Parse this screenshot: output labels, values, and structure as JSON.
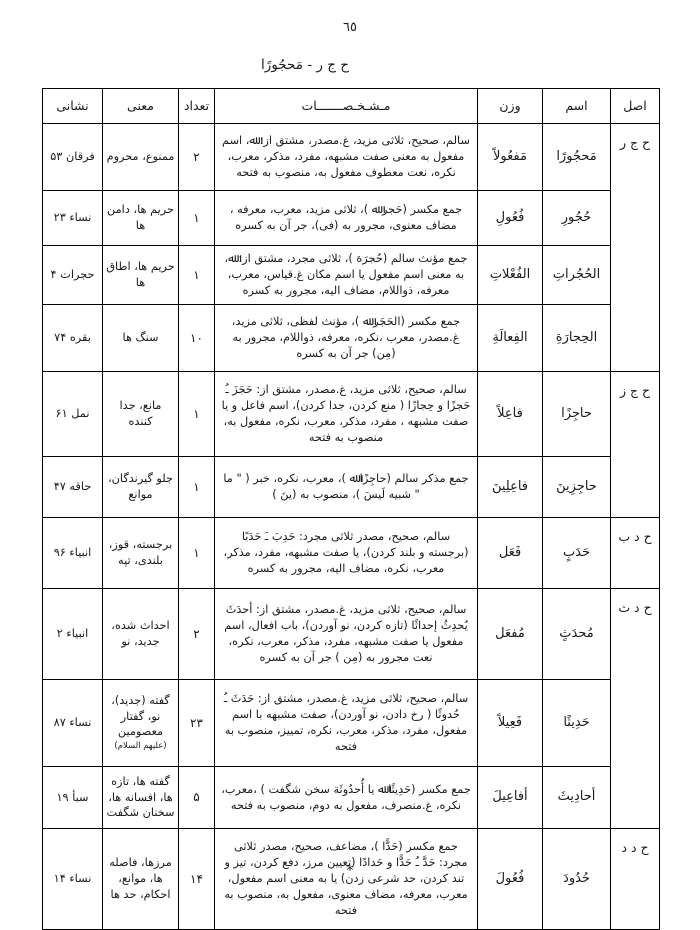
{
  "page": {
    "number": "٦٥",
    "title": "ح ج ر - مَحجُورًا",
    "footer_mark": "*"
  },
  "table": {
    "headers": {
      "asl": "اصل",
      "esm": "اسم",
      "vazn": "وزن",
      "moshakhasat": "مـشـخـصـــــــات",
      "tedad": "تعداد",
      "mani": "معنی",
      "neshani": "نشانی"
    },
    "groups": [
      {
        "label": "ح ج ر"
      },
      {
        "label": "ح ج ز"
      },
      {
        "label": "ح د ب"
      },
      {
        "label": "ح د ث"
      },
      {
        "label": "ح د د"
      }
    ],
    "rows": [
      {
        "esm": "مَحجُورًا",
        "vazn": "مَفعُولاً",
        "details": "سالم، صحیح، ثلاثی مزید، غ.مصدر، مشتق از: ﷲ، اسم مفعول به معنی صفت مشبهه، مفرد، مذکر، معرب، نکره، نعت معطوف مفعول به، منصوب به فتحه",
        "count": "۲",
        "meaning": "ممنوع، محروم",
        "address": "فرقان ۵۳"
      },
      {
        "esm": "حُجُورِ",
        "vazn": "فُعُولِ",
        "details": "جمع مکسر (حَجر ﷲ )، ثلاثی مزید، معرب، معرفه ، مضاف معنوی، مجرور به (فی)، جر آن به کسره",
        "count": "۱",
        "meaning": "حریم ها، دامن ها",
        "address": "نساء ۲۳"
      },
      {
        "esm": "الحُجُراتِ",
        "vazn": "الفُعْلاتِ",
        "details": "جمع مؤنث سالم (حُجرَة )، ثلاثی مجرد، مشتق از: ﷲ، به معنی اسم مفعول یا اسم مکان غ.قیاس، معرب، معرفه، ذواللام، مضاف الیه، مجرور به کسره",
        "count": "۱",
        "meaning": "حریم ها، اطاق ها",
        "address": "حجرات ۴"
      },
      {
        "esm": "الحِجارَةِ",
        "vazn": "الفِعالَةِ",
        "details": "جمع مکسر (الحَجَر ﷲ )، مؤنث لفظی، ثلاثی مزید، غ.مصدر، معرب ،نکره، معرفه، ذواللام، مجرور به (مِن) جر آن به کسره",
        "count": "۱۰",
        "meaning": "سنگ ها",
        "address": "بقره ۷۴"
      },
      {
        "esm": "حاجِزًا",
        "vazn": "فاعِلاً",
        "details": "سالم، صحیح، ثلاثی مزید، غ.مصدر، مشتق از: حَجَزَ ـُ حَجزًا و حِجازًا ( منع کردن، جدا کردن)، اسم فاعل و یا صفت مشبهه ، مفرد، مذکر، معرب، نکره، مفعول به، منصوب به فتحه",
        "count": "۱",
        "meaning": "مانع، جدا کننده",
        "address": "نمل ۶۱"
      },
      {
        "esm": "حاجِزِینَ",
        "vazn": "فاعِلِینَ",
        "details": "جمع مذکر سالم (حاجِزًا ﷲ )، معرب، نکره، خبر ( \" ما \" شبیه لَیسَ )، منصوب به (ینَ )",
        "count": "۱",
        "meaning": "جلو گیرندگان، موانع",
        "address": "حاقه ۴۷"
      },
      {
        "esm": "حَدَبٍ",
        "vazn": "فَعَل",
        "details": "سالم، صحیح، مصدر ثلاثی مجرد: حَدِبَ ـَ حَدَبًا (برجسته و بلند کردن)، یا صفت مشبهه، مفرد، مذکر، معرب، نکره، مضاف الیه، مجرور به کسره",
        "count": "۱",
        "meaning": "برجسته، قوز، بلندی، تپه",
        "address": "انبیاء ۹۶"
      },
      {
        "esm": "مُحدَثٍ",
        "vazn": "مُفعَل",
        "details": "سالم، صحیح، ثلاثی مزید، غ.مصدر، مشتق از: أحدَثَ یُحدِثُ إحداثًا (تازه کردن، نو آوردن)، باب افعال، اسم مفعول یا صفت مشبهه، مفرد، مذکر، معرب، نکره، نعت مجرور به (مِن ) جر آن به کسره",
        "count": "۲",
        "meaning": "احداث شده، جدید، نو",
        "address": "انبیاء ۲"
      },
      {
        "esm": "حَدِیثًا",
        "vazn": "فَعِیلاً",
        "details": "سالم، صحیح، ثلاثی مزید، غ.مصدر، مشتق از: حَدَثَ ـُ حُدوثًا ( رخ دادن، نو آوردن)، صفت مشبهه با اسم مفعول، مفرد، مذکر، معرب، نکره، تمییز، منصوب به فتحه",
        "count": "۲۳",
        "meaning": "گفته (جدید)، نو، گفتار معصومین",
        "meaning_note": "(علیهم السلام)",
        "address": "نساء ۸۷"
      },
      {
        "esm": "أحادِیثَ",
        "vazn": "أفاعِیلَ",
        "details": "جمع مکسر (حَدِیثًا ﷲ یا أُحدُوثَة سخن شگفت ) ،معرب، نکره، غ.منصرف، مفعول به دوم، منصوب به فتحه",
        "count": "۵",
        "meaning": "گفته ها، تازه ها، افسانه ها، سخنان شگفت",
        "address": "سبأ ۱۹"
      },
      {
        "esm": "حُدُودَ",
        "vazn": "فُعُولَ",
        "details": "جمع مکسر (حَدًّا )، مضاعف، صحیح، مصدر ثلاثی مجرد: حَدَّ ـُ حَدًّا و حَدادًا (تعیین مرز، دفع کردن، تیز و تند کردن، حد شرعی زدن) یا به معنی اسم مفعول، معرب، معرفه، مضاف معنوی، مفعول به، منصوب به فتحه",
        "count": "۱۴",
        "meaning": "مرزها، فاصله ها، موانع، احکام، حد ها",
        "address": "نساء ۱۴"
      }
    ]
  }
}
